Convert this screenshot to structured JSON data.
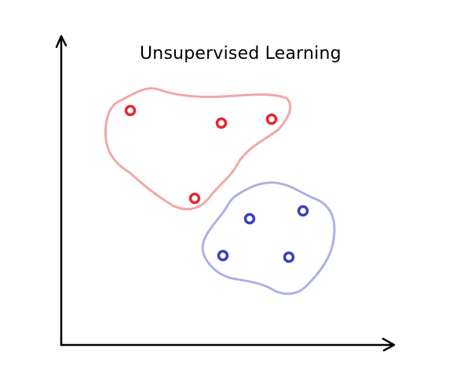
{
  "diagram": {
    "title": "Unsupervised Learning"
  },
  "colors": {
    "cluster_a": "#e8262e",
    "cluster_a_outline": "#f0a8a8",
    "cluster_b": "#3a3fbf",
    "cluster_b_outline": "#adb0e8",
    "axes": "#000000"
  }
}
